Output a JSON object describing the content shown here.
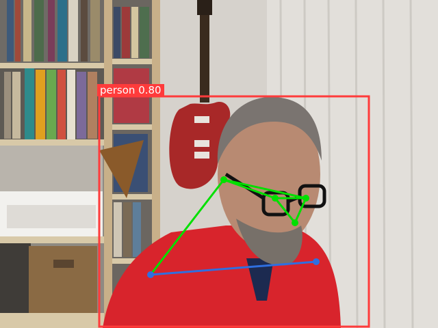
{
  "detection": {
    "class_name": "person",
    "score": "0.80",
    "box_color": "#ff3b3b"
  },
  "pose": {
    "head_link_color": "#00e000",
    "shoulder_link_color": "#2f6fe0"
  }
}
